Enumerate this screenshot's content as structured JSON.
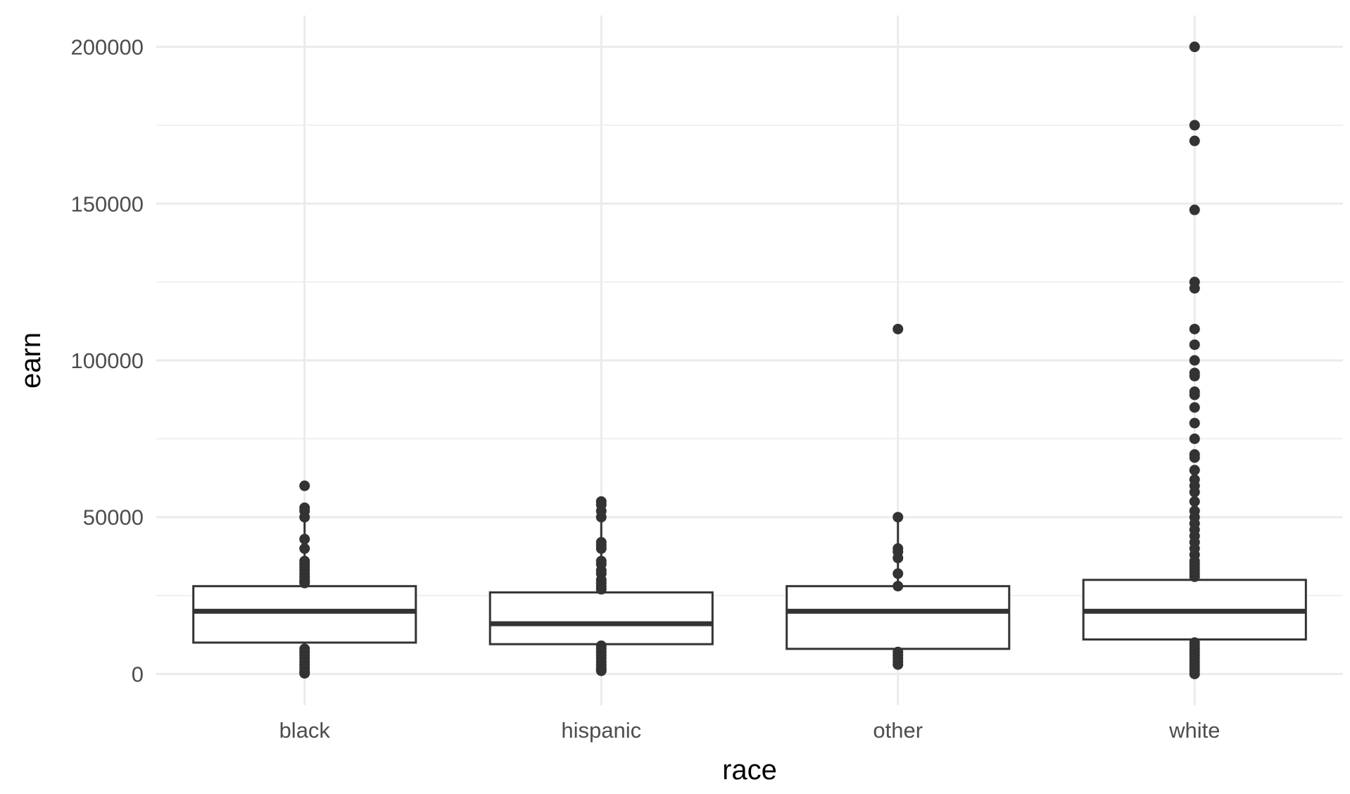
{
  "chart_data": {
    "type": "boxplot",
    "xlabel": "race",
    "ylabel": "earn",
    "ylim": [
      -10000,
      210000
    ],
    "yticks": [
      0,
      50000,
      100000,
      150000,
      200000
    ],
    "ytick_labels": [
      "0",
      "50000",
      "100000",
      "150000",
      "200000"
    ],
    "grid": true,
    "categories": [
      "black",
      "hispanic",
      "other",
      "white"
    ],
    "boxes": [
      {
        "category": "black",
        "whisker_low": 0,
        "q1": 10000,
        "median": 20000,
        "q3": 28000,
        "whisker_high": 50000,
        "outliers": [
          60000,
          53000,
          52000,
          50000,
          43000,
          40000,
          36000,
          35000,
          34000,
          33000,
          32000,
          31000,
          30000,
          29000,
          29500,
          8000,
          7000,
          6000,
          5000,
          4000,
          3000,
          2000,
          1000,
          500,
          200
        ]
      },
      {
        "category": "hispanic",
        "whisker_low": 1000,
        "q1": 9500,
        "median": 16000,
        "q3": 26000,
        "whisker_high": 50000,
        "outliers": [
          55000,
          54000,
          52000,
          50000,
          42000,
          41000,
          40000,
          36000,
          35000,
          33000,
          32000,
          30000,
          29000,
          28000,
          27000,
          9000,
          8000,
          7000,
          6000,
          5000,
          4000,
          3000,
          2000,
          1500,
          1000
        ]
      },
      {
        "category": "other",
        "whisker_low": 3000,
        "q1": 8000,
        "median": 20000,
        "q3": 28000,
        "whisker_high": 50000,
        "outliers": [
          110000,
          50000,
          40000,
          39000,
          37000,
          32000,
          28000,
          7000,
          6000,
          5000,
          4000,
          3000
        ]
      },
      {
        "category": "white",
        "whisker_low": 0,
        "q1": 11000,
        "median": 20000,
        "q3": 30000,
        "whisker_high": 57000,
        "outliers": [
          200000,
          175000,
          170000,
          148000,
          125000,
          123000,
          110000,
          105000,
          100000,
          96000,
          95000,
          90000,
          89000,
          85000,
          80000,
          75000,
          70000,
          69000,
          65000,
          62000,
          60000,
          58000,
          55000,
          52000,
          50000,
          48000,
          46000,
          44000,
          42000,
          40000,
          38000,
          36000,
          35000,
          34000,
          33000,
          32000,
          31000,
          10000,
          9000,
          8000,
          7000,
          6000,
          5000,
          4000,
          3000,
          2000,
          1000,
          0
        ]
      }
    ]
  }
}
